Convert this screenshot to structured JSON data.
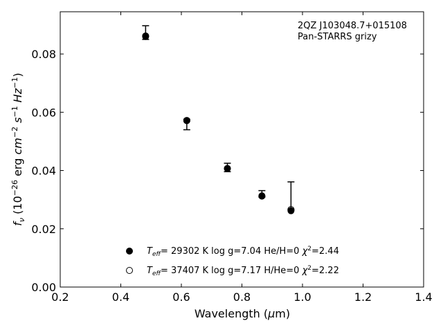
{
  "chart_data": {
    "type": "scatter",
    "annotation_lines": [
      "2QZ J103048.7+015108",
      "Pan-STARRS grizy"
    ],
    "xlabel": "Wavelength (μm)",
    "ylabel": "f_ν (10^-26 erg cm^-2 s^-1 Hz^-1)",
    "xlim": [
      0.2,
      1.4
    ],
    "ylim": [
      0.0,
      0.0945
    ],
    "xticks": [
      "0.2",
      "0.4",
      "0.6",
      "0.8",
      "1.0",
      "1.2",
      "1.4"
    ],
    "yticks": [
      "0.00",
      "0.02",
      "0.04",
      "0.06",
      "0.08"
    ],
    "grid": false,
    "legend_position": "lower-center",
    "observed": {
      "x": [
        0.482,
        0.618,
        0.752,
        0.866,
        0.962
      ],
      "y": [
        0.086,
        0.0573,
        0.0406,
        0.0318,
        0.0265
      ],
      "yerr_low": [
        0.085,
        0.054,
        0.0396,
        0.0309,
        0.0265
      ],
      "yerr_high": [
        0.0897,
        0.0576,
        0.0425,
        0.0331,
        0.0361
      ]
    },
    "series": [
      {
        "name": "T_eff= 29302 K  log g=7.04  He/H=0  χ²=2.44",
        "marker": "filled-circle",
        "x": [
          0.482,
          0.618,
          0.752,
          0.866,
          0.962
        ],
        "y": [
          0.086,
          0.0571,
          0.0407,
          0.0312,
          0.0262
        ]
      },
      {
        "name": "T_eff= 37407 K  log g=7.17  H/He=0  χ²=2.22",
        "marker": "open-circle",
        "x": [
          0.482,
          0.618,
          0.752,
          0.866,
          0.962
        ],
        "y": [
          0.0862,
          0.0572,
          0.0407,
          0.0313,
          0.0266
        ]
      }
    ]
  }
}
